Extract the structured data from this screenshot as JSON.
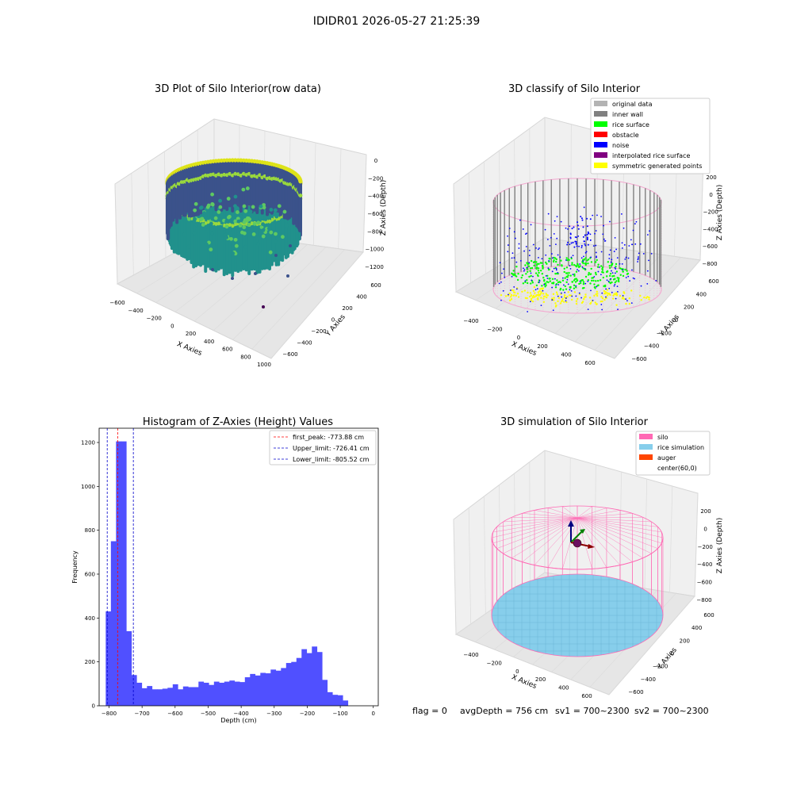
{
  "figure": {
    "suptitle": "IDIDR01 2026-05-27 21:25:39",
    "status_line": {
      "flag": "flag = 0",
      "avg_depth": "avgDepth = 756 cm",
      "sv1": "sv1 = 700~2300",
      "sv2": "sv2 = 700~2300"
    }
  },
  "chart_data": [
    {
      "type": "scatter",
      "title": "3D Plot of Silo Interior(row data)",
      "xlabel": "X Axies",
      "ylabel": "Y Axies",
      "zlabel": "Z Axies (Depth)",
      "xticks": [
        "−600",
        "−400",
        "−200",
        "0",
        "200",
        "400",
        "600",
        "800",
        "1000"
      ],
      "yticks": [
        "−600",
        "−400",
        "−200",
        "0",
        "200",
        "400",
        "600"
      ],
      "zticks": [
        "0",
        "−200",
        "−400",
        "−600",
        "−800",
        "−1000",
        "−1200"
      ],
      "colormap": "viridis",
      "colors": {
        "high": "#dde318",
        "mid": "#21918c",
        "low": "#3b528b",
        "min": "#440154"
      }
    },
    {
      "type": "scatter",
      "title": "3D classify of Silo Interior",
      "xlabel": "X Axies",
      "ylabel": "Y Axies",
      "zlabel": "Z Axies (Depth)",
      "xticks": [
        "−400",
        "−200",
        "0",
        "200",
        "400",
        "600"
      ],
      "yticks": [
        "−600",
        "−400",
        "−200",
        "0",
        "200",
        "400",
        "600"
      ],
      "zticks": [
        "200",
        "0",
        "−200",
        "−400",
        "−600",
        "−800"
      ],
      "legend": [
        {
          "label": "original data",
          "color": "#b3b3b3"
        },
        {
          "label": "inner wall",
          "color": "#808080"
        },
        {
          "label": "rice surface",
          "color": "#00ff00"
        },
        {
          "label": "obstacle",
          "color": "#ff0000"
        },
        {
          "label": "noise",
          "color": "#0000ff"
        },
        {
          "label": "interpolated rice surface",
          "color": "#800080"
        },
        {
          "label": "symmetric generated points",
          "color": "#ffff00"
        }
      ],
      "legend_position": "top-right",
      "outline_color": "#f4a6cf"
    },
    {
      "type": "bar",
      "title": "Histogram of Z-Axies (Height) Values",
      "xlabel": "Depth (cm)",
      "ylabel": "Frequency",
      "xlim": [
        -830,
        15
      ],
      "ylim": [
        0,
        1265
      ],
      "xticks": [
        -800,
        -700,
        -600,
        -500,
        -400,
        -300,
        -200,
        -100,
        0
      ],
      "yticks": [
        0,
        200,
        400,
        600,
        800,
        1000,
        1200
      ],
      "bar_color": "#5050ff",
      "bin_edges_start": -810,
      "bin_width": 15.6,
      "values": [
        430,
        750,
        1205,
        1205,
        340,
        140,
        105,
        80,
        90,
        75,
        75,
        78,
        82,
        98,
        75,
        88,
        85,
        85,
        110,
        105,
        95,
        110,
        105,
        110,
        115,
        110,
        108,
        130,
        145,
        138,
        150,
        148,
        165,
        160,
        172,
        195,
        200,
        218,
        258,
        240,
        270,
        245,
        118,
        62,
        50,
        48,
        24
      ],
      "vlines": [
        {
          "label": "first_peak: -773.88 cm",
          "value": -773.88,
          "color": "#ff0000"
        },
        {
          "label": "Upper_limit: -726.41 cm",
          "value": -726.41,
          "color": "#0000cc"
        },
        {
          "label": "Lower_limit: -805.52 cm",
          "value": -805.52,
          "color": "#0000cc"
        }
      ],
      "legend_position": "top-right"
    },
    {
      "type": "area",
      "title": "3D simulation of Silo Interior",
      "xlabel": "X Axies",
      "ylabel": "Y Axies",
      "zlabel": "Z Axies (Depth)",
      "xticks": [
        "−400",
        "−200",
        "0",
        "200",
        "400",
        "600"
      ],
      "yticks": [
        "−600",
        "−400",
        "−200",
        "0",
        "200",
        "400",
        "600"
      ],
      "zticks": [
        "200",
        "0",
        "−200",
        "−400",
        "−600",
        "−800"
      ],
      "legend": [
        {
          "label": "silo",
          "color": "#ff69b4"
        },
        {
          "label": "rice simulation",
          "color": "#87ceeb"
        },
        {
          "label": "auger",
          "color": "#ff4500"
        },
        {
          "label": "center(60,0)",
          "color": "#ffffff"
        }
      ],
      "legend_position": "top-right"
    }
  ]
}
